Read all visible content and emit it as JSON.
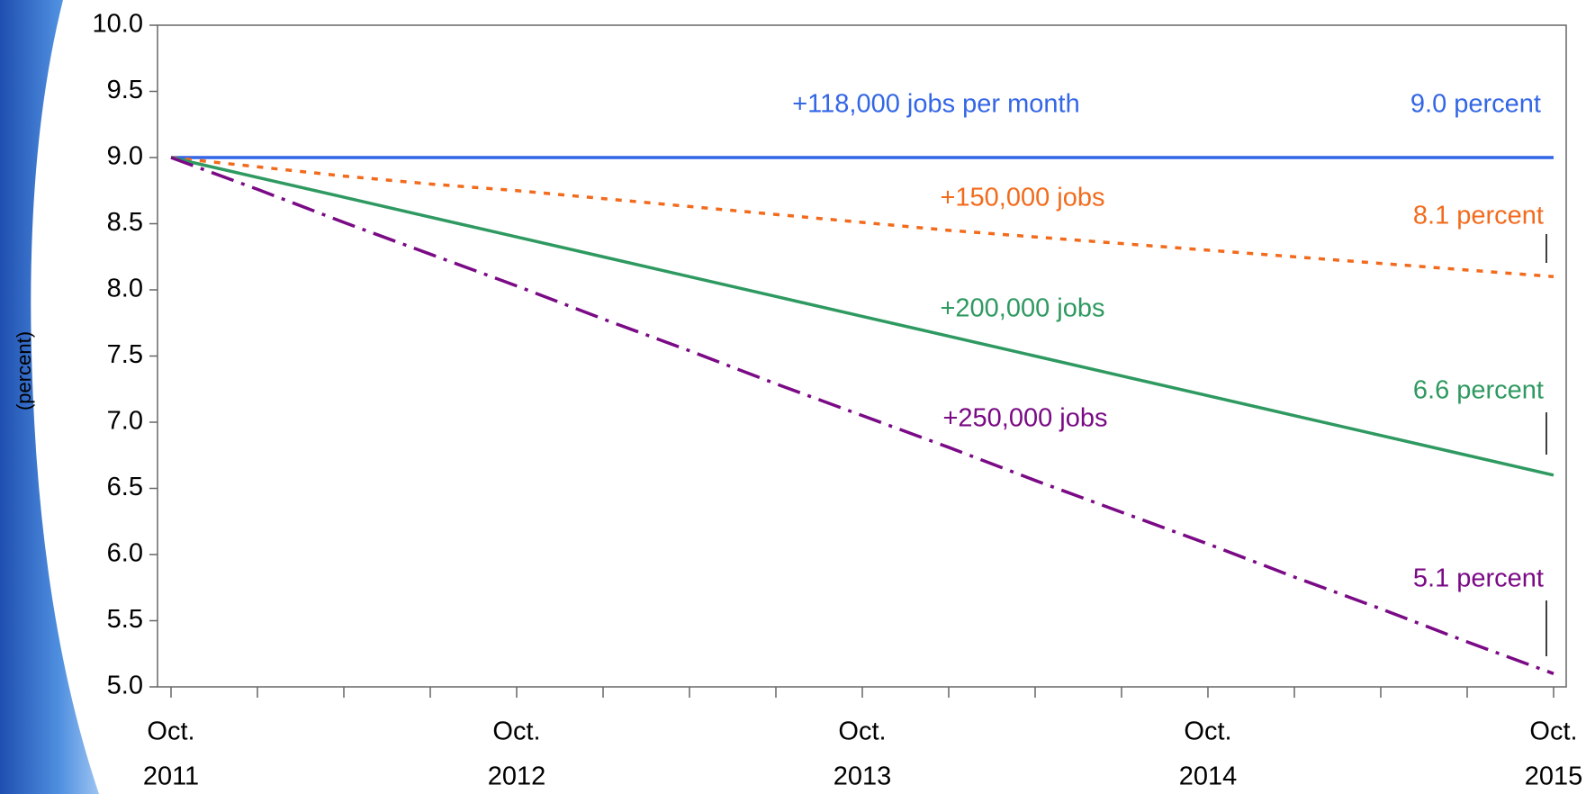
{
  "chart_data": {
    "type": "line",
    "y_label": "(percent)",
    "categories": [
      [
        "Oct.",
        "2011"
      ],
      null,
      null,
      null,
      [
        "Oct.",
        "2012"
      ],
      null,
      null,
      null,
      [
        "Oct.",
        "2013"
      ],
      null,
      null,
      null,
      [
        "Oct.",
        "2014"
      ],
      null,
      null,
      null,
      [
        "Oct.",
        "2015"
      ]
    ],
    "ylim": [
      5,
      10
    ],
    "yticks": [
      {
        "value": 5,
        "label": "5.0"
      },
      {
        "value": 5.5,
        "label": "5.5"
      },
      {
        "value": 6,
        "label": "6.0"
      },
      {
        "value": 6.5,
        "label": "6.5"
      },
      {
        "value": 7,
        "label": "7.0"
      },
      {
        "value": 7.5,
        "label": "7.5"
      },
      {
        "value": 8,
        "label": "8.0"
      },
      {
        "value": 8.5,
        "label": "8.5"
      },
      {
        "value": 9,
        "label": "9.0"
      },
      {
        "value": 9.5,
        "label": "9.5"
      },
      {
        "value": 10,
        "label": "10.0"
      }
    ],
    "series": [
      {
        "name": "+118,000 jobs per month",
        "end_label": "9.0 percent",
        "color": "#3366e6",
        "dash": "solid",
        "values": [
          9,
          9,
          9,
          9,
          9,
          9,
          9,
          9,
          9,
          9,
          9,
          9,
          9,
          9,
          9,
          9,
          9
        ]
      },
      {
        "name": "+150,000 jobs",
        "end_label": "8.1 percent",
        "color": "#f26b1d",
        "dash": "dot",
        "values": [
          9,
          8.93,
          8.86,
          8.8,
          8.75,
          8.69,
          8.63,
          8.57,
          8.51,
          8.45,
          8.4,
          8.35,
          8.3,
          8.25,
          8.2,
          8.15,
          8.1
        ]
      },
      {
        "name": "+200,000 jobs",
        "end_label": "6.6 percent",
        "color": "#2e9960",
        "dash": "solid",
        "values": [
          9,
          8.85,
          8.7,
          8.55,
          8.4,
          8.25,
          8.1,
          7.95,
          7.8,
          7.65,
          7.5,
          7.35,
          7.2,
          7.05,
          6.9,
          6.75,
          6.6
        ]
      },
      {
        "name": "+250,000 jobs",
        "end_label": "5.1 percent",
        "color": "#7a0a85",
        "dash": "dashdot",
        "values": [
          9,
          8.76,
          8.51,
          8.27,
          8.03,
          7.78,
          7.54,
          7.29,
          7.05,
          6.81,
          6.56,
          6.32,
          6.08,
          5.83,
          5.59,
          5.34,
          5.1
        ]
      }
    ]
  }
}
